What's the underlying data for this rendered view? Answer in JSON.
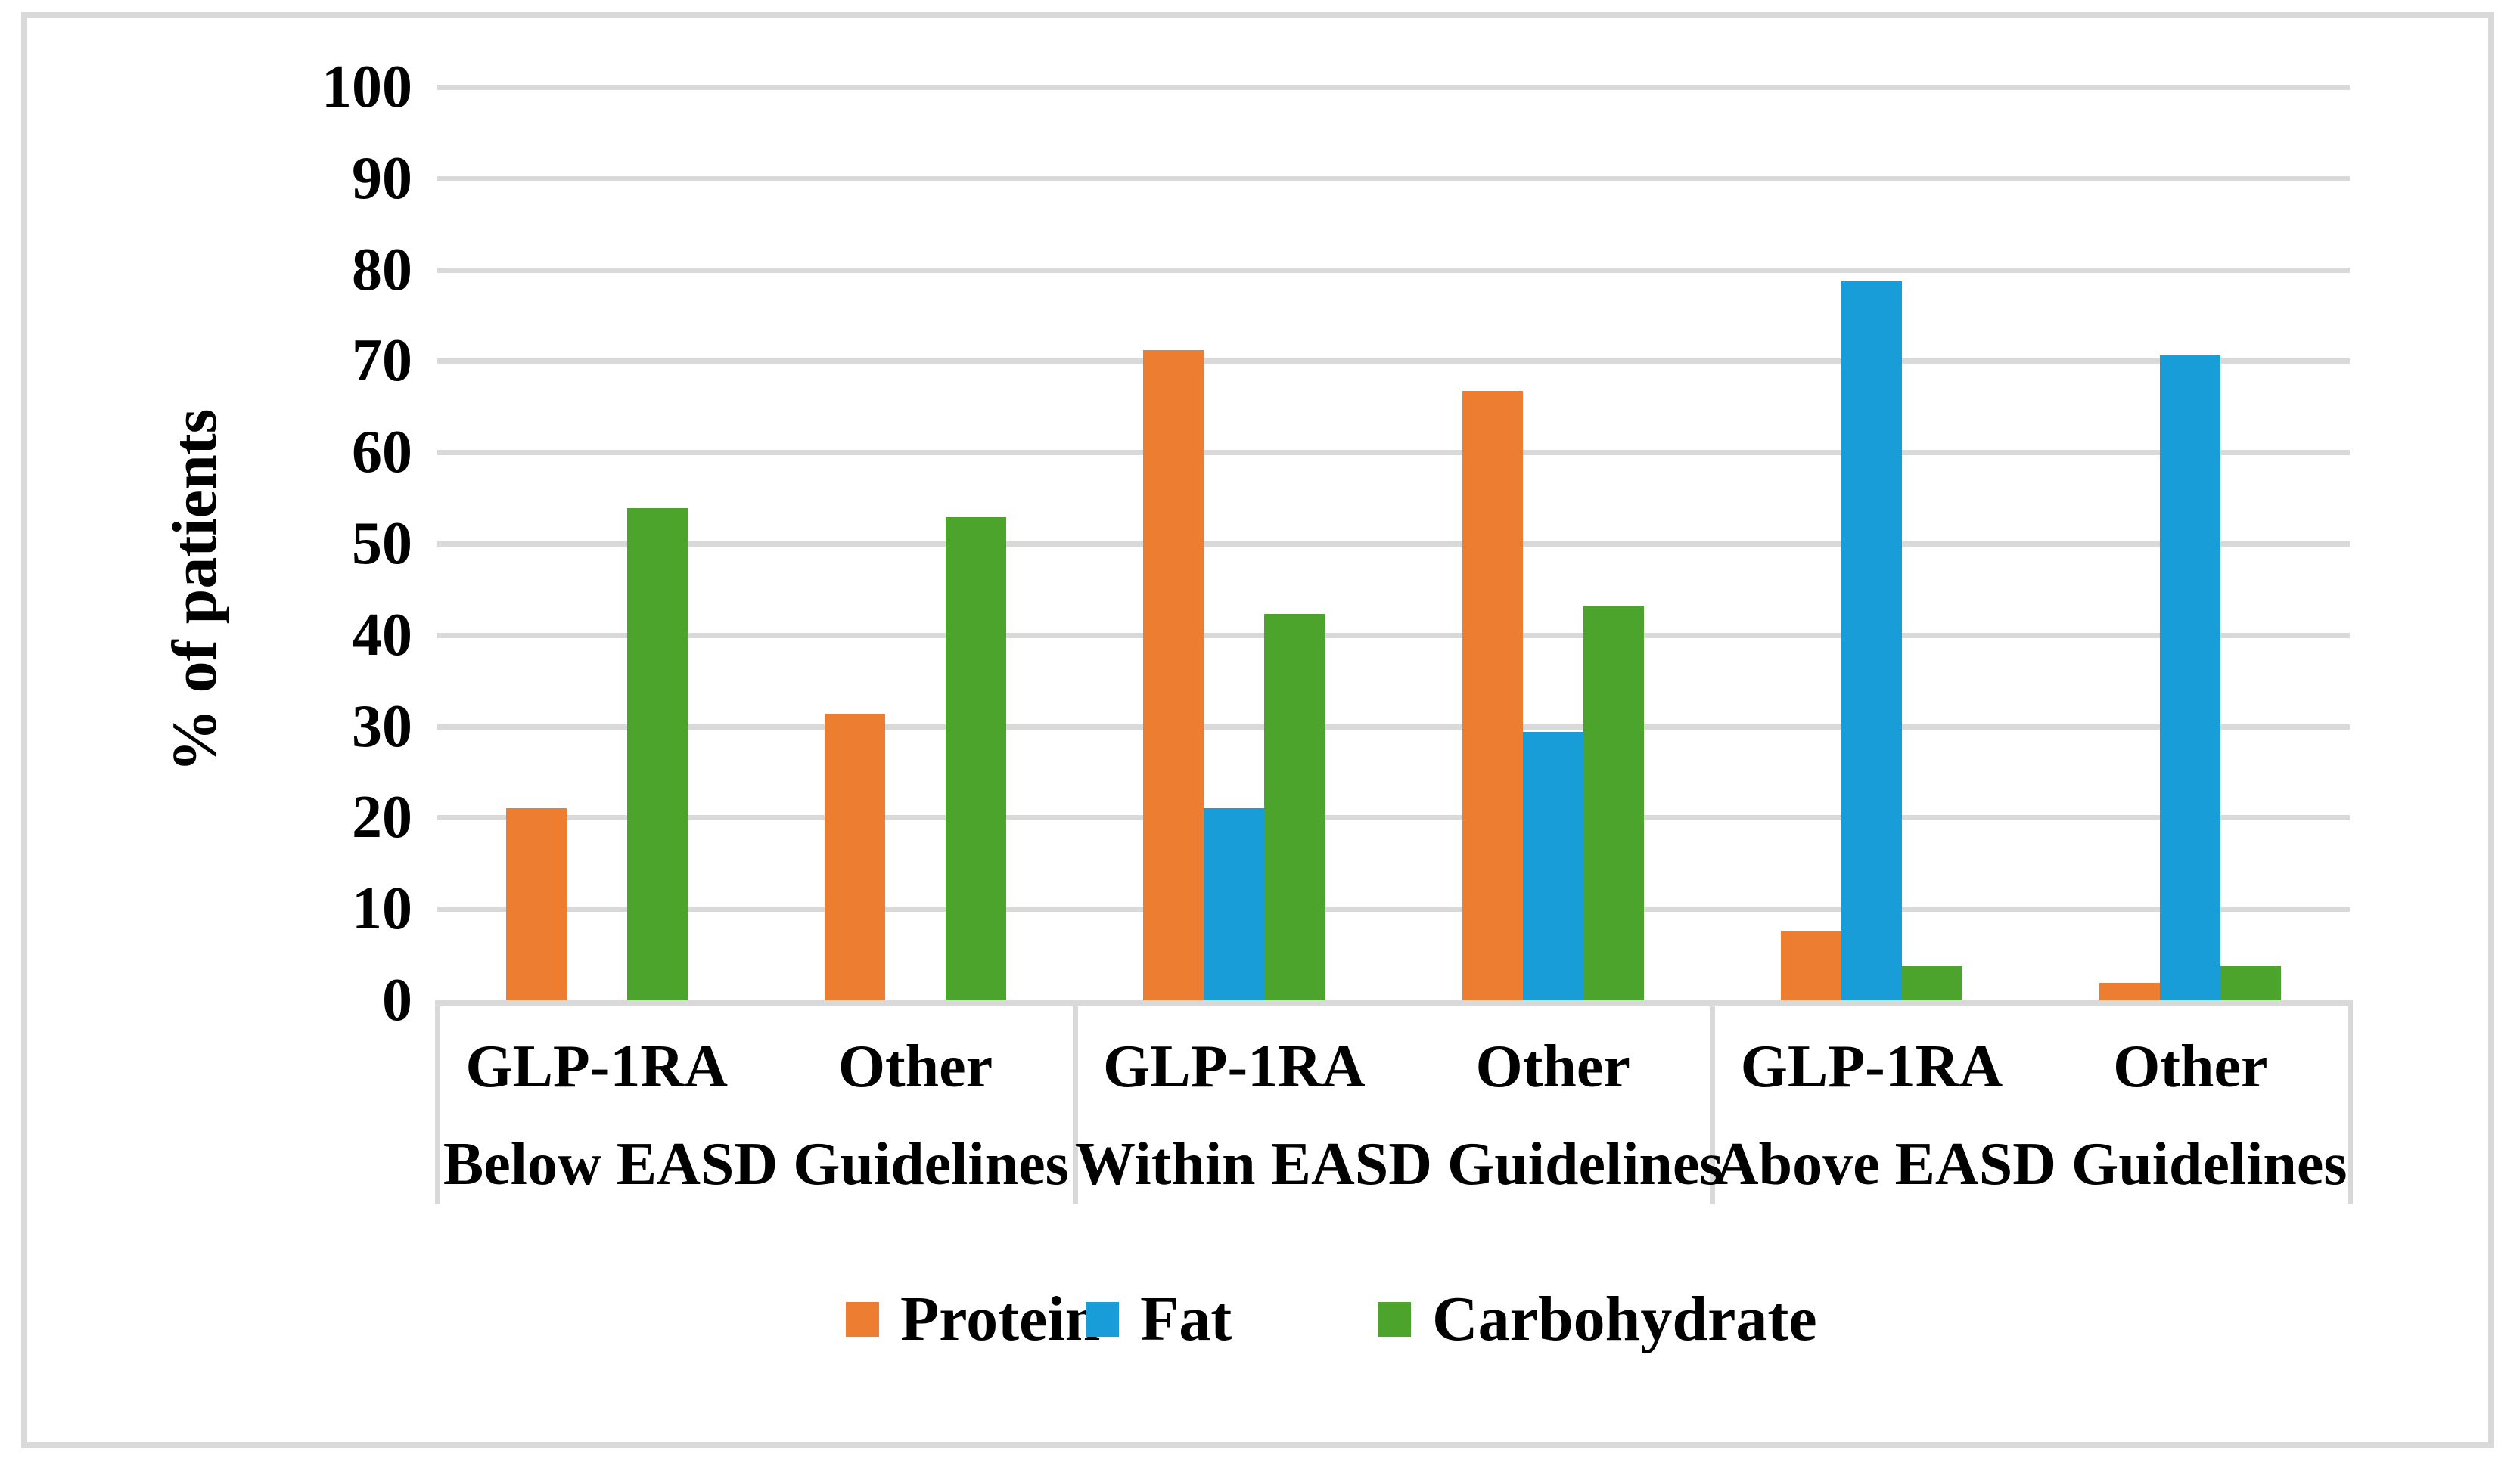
{
  "figure": {
    "background_color": "#ffffff",
    "border_color": "#D9D9D9"
  },
  "chart_data": {
    "type": "bar",
    "title": "",
    "xlabel": "",
    "ylabel": "% of patients",
    "ylim": [
      0,
      100
    ],
    "yticks": [
      0,
      10,
      20,
      30,
      40,
      50,
      60,
      70,
      80,
      90,
      100
    ],
    "grid": true,
    "gridline_color": "#D9D9D9",
    "axis_line_color": "#D9D9D9",
    "legend_position": "bottom-center",
    "groups": [
      {
        "label": "Below EASD Guidelines",
        "categories": [
          "GLP-1RA",
          "Other"
        ]
      },
      {
        "label": "Within EASD Guidelines",
        "categories": [
          "GLP-1RA",
          "Other"
        ]
      },
      {
        "label": "Above EASD Guidelines",
        "categories": [
          "GLP-1RA",
          "Other"
        ]
      }
    ],
    "category_order": [
      "Below GLP-1RA",
      "Below Other",
      "Within GLP-1RA",
      "Within Other",
      "Above GLP-1RA",
      "Above Other"
    ],
    "series": [
      {
        "name": "Protein",
        "color": "#ED7D31",
        "values": [
          21.0,
          31.4,
          71.2,
          66.7,
          7.6,
          1.9
        ]
      },
      {
        "name": "Fat",
        "color": "#199DD9",
        "values": [
          0,
          0,
          21.0,
          29.4,
          78.7,
          70.6
        ]
      },
      {
        "name": "Carbohydrate",
        "color": "#4CA42D",
        "values": [
          53.9,
          52.9,
          42.3,
          43.1,
          3.7,
          3.8
        ]
      }
    ]
  }
}
